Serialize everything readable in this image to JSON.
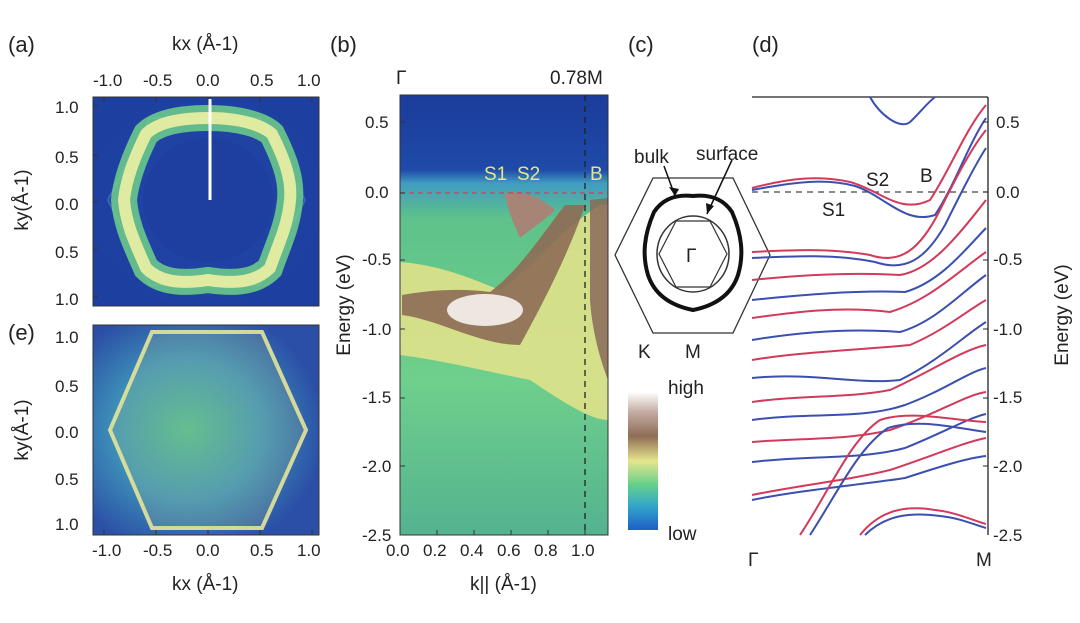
{
  "panels": {
    "a": "(a)",
    "b": "(b)",
    "c": "(c)",
    "d": "(d)",
    "e": "(e)"
  },
  "panel_a": {
    "top_axis_label": "kx (Å-1)",
    "top_ticks": [
      "-1.0",
      "-0.5",
      "0.0",
      "0.5",
      "1.0"
    ],
    "y_label": "ky(Å-1)",
    "y_ticks": [
      "1.0",
      "0.5",
      "0.0",
      "0.5",
      "1.0"
    ]
  },
  "panel_e": {
    "x_label": "kx (Å-1)",
    "x_ticks": [
      "-1.0",
      "-0.5",
      "0.0",
      "0.5",
      "1.0"
    ],
    "y_label": "ky(Å-1)",
    "y_ticks": [
      "1.0",
      "0.5",
      "0.0",
      "0.5",
      "1.0"
    ]
  },
  "panel_b": {
    "top_labels": [
      "Γ",
      "0.78M"
    ],
    "y_label": "Energy (eV)",
    "y_ticks": [
      "0.5",
      "0.0",
      "-0.5",
      "-1.0",
      "-1.5",
      "-2.0",
      "-2.5"
    ],
    "x_label": "k|| (Å-1)",
    "x_ticks": [
      "0.0",
      "0.2",
      "0.4",
      "0.6",
      "0.8",
      "1.0"
    ],
    "annotations": [
      "S1",
      "S2",
      "B"
    ],
    "colorbar": {
      "high": "high",
      "low": "low"
    }
  },
  "panel_c": {
    "labels": {
      "bulk": "bulk",
      "surface": "surface",
      "gamma": "Γ",
      "k": "K",
      "m": "M"
    }
  },
  "panel_d": {
    "y_label": "Energy (eV)",
    "y_ticks": [
      "0.5",
      "0.0",
      "-0.5",
      "-1.0",
      "-1.5",
      "-2.0",
      "-2.5"
    ],
    "x_labels": [
      "Γ",
      "M"
    ],
    "annotations": [
      "S1",
      "S2",
      "B"
    ],
    "colors": {
      "series_a": "#3a4fb0",
      "series_b": "#d23a5a"
    }
  }
}
